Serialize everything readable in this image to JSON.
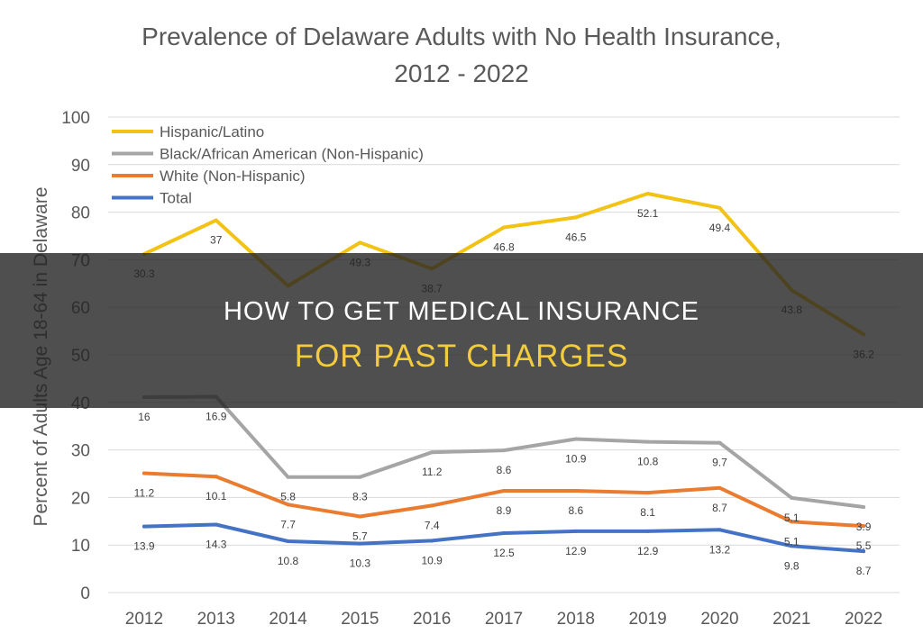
{
  "chart_data": {
    "type": "line",
    "title_line1": "Prevalence of Delaware Adults with No Health Insurance,",
    "title_line2": "2012 - 2022",
    "xlabel": "",
    "ylabel": "Percent of Adults Age 18-64 in Delaware",
    "ylim": [
      0,
      100
    ],
    "yticks": [
      0,
      10,
      20,
      30,
      40,
      50,
      60,
      70,
      80,
      90,
      100
    ],
    "categories": [
      "2012",
      "2013",
      "2014",
      "2015",
      "2016",
      "2017",
      "2018",
      "2019",
      "2020",
      "2021",
      "2022"
    ],
    "grid": true,
    "legend_position": "top-left",
    "series": [
      {
        "name": "Hispanic/Latino",
        "color": "#F2C314",
        "values": [
          71.2,
          78.3,
          64.5,
          73.6,
          68.1,
          76.8,
          78.9,
          83.9,
          80.9,
          63.6,
          54.3
        ],
        "labels": [
          "30.3",
          "37",
          "",
          "49.3",
          "38.7",
          "46.8",
          "46.5",
          "52.1",
          "49.4",
          "43.8",
          "36.2"
        ]
      },
      {
        "name": "Black/African American (Non-Hispanic)",
        "color": "#A5A5A5",
        "values": [
          41.1,
          41.2,
          24.3,
          24.3,
          29.5,
          29.9,
          32.3,
          31.7,
          31.5,
          19.9,
          18.0
        ],
        "labels": [
          "16",
          "16.9",
          "5.8",
          "8.3",
          "11.2",
          "8.6",
          "10.9",
          "10.8",
          "9.7",
          "5.1",
          "3.9"
        ]
      },
      {
        "name": "White (Non-Hispanic)",
        "color": "#E97C30",
        "values": [
          25.1,
          24.4,
          18.5,
          16.0,
          18.3,
          21.4,
          21.4,
          21.0,
          22.0,
          14.9,
          14.0
        ],
        "labels": [
          "11.2",
          "10.1",
          "7.7",
          "5.7",
          "7.4",
          "8.9",
          "8.6",
          "8.1",
          "8.7",
          "5.1",
          "5.5"
        ]
      },
      {
        "name": "Total",
        "color": "#4472C4",
        "values": [
          13.9,
          14.3,
          10.8,
          10.3,
          10.9,
          12.5,
          12.9,
          12.9,
          13.2,
          9.8,
          8.7
        ],
        "labels": [
          "13.9",
          "14.3",
          "10.8",
          "10.3",
          "10.9",
          "12.5",
          "12.9",
          "12.9",
          "13.2",
          "9.8",
          "8.7"
        ]
      }
    ]
  },
  "banner": {
    "line1": "HOW TO GET MEDICAL INSURANCE",
    "line2": "FOR PAST CHARGES"
  }
}
